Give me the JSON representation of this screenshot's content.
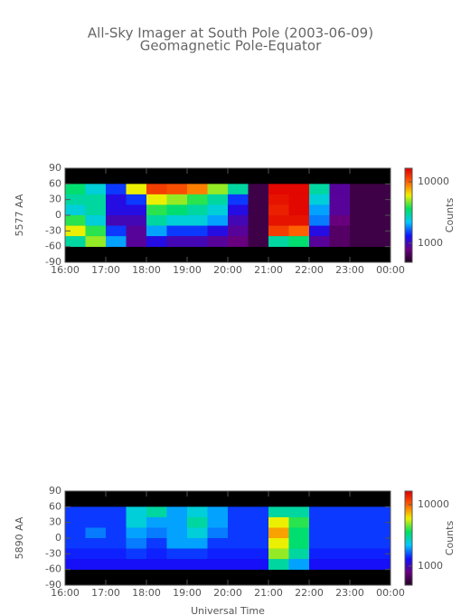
{
  "chart_data": [
    {
      "type": "heatmap",
      "title": "All-Sky Imager at South Pole (2003-06-09)",
      "subtitle": "Geomagnetic Pole-Equator",
      "ylabel": "5577 AA",
      "colorbar_label": "Counts",
      "xlim": [
        16,
        24
      ],
      "xticks": [
        {
          "value": 16,
          "label": "16:00"
        },
        {
          "value": 17,
          "label": "17:00"
        },
        {
          "value": 18,
          "label": "18:00"
        },
        {
          "value": 19,
          "label": "19:00"
        },
        {
          "value": 20,
          "label": "20:00"
        },
        {
          "value": 21,
          "label": "21:00"
        },
        {
          "value": 22,
          "label": "22:00"
        },
        {
          "value": 23,
          "label": "23:00"
        },
        {
          "value": 24,
          "label": "00:00"
        }
      ],
      "ylim": [
        -90,
        90
      ],
      "yticks": [
        -90,
        -60,
        -30,
        0,
        30,
        60,
        90
      ],
      "clim": [
        490,
        16600
      ],
      "cticks": [
        1000,
        10000
      ],
      "log_color": true,
      "colors": [
        "#200020",
        "#6a0080",
        "#1010ff",
        "#00c8ff",
        "#00e060",
        "#f0f000",
        "#ff6000",
        "#e00000"
      ],
      "x": [
        16.25,
        16.75,
        17.25,
        17.75,
        18.25,
        18.75,
        19.25,
        19.75,
        20.25,
        20.75,
        21.25,
        21.75,
        22.25,
        22.75,
        23.25,
        23.75
      ],
      "y": [
        50,
        30,
        10,
        -10,
        -30,
        -50
      ],
      "values": [
        [
          3500,
          2500,
          1500,
          6000,
          12000,
          11000,
          9000,
          5000,
          3000,
          600,
          16000,
          16000,
          3000,
          900,
          600,
          600
        ],
        [
          3000,
          3000,
          1200,
          1500,
          6000,
          5000,
          4000,
          3000,
          1500,
          600,
          15000,
          16000,
          2500,
          900,
          600,
          600
        ],
        [
          2500,
          3000,
          1200,
          1200,
          4000,
          3500,
          3000,
          2500,
          1200,
          600,
          14000,
          16000,
          2000,
          900,
          600,
          600
        ],
        [
          4000,
          2500,
          1000,
          1000,
          3000,
          2500,
          2500,
          2000,
          1000,
          600,
          15000,
          15000,
          1800,
          800,
          600,
          600
        ],
        [
          6000,
          4000,
          1500,
          900,
          2000,
          1500,
          1500,
          1200,
          900,
          600,
          12000,
          10000,
          1200,
          700,
          600,
          600
        ],
        [
          3000,
          5000,
          2000,
          900,
          1200,
          1000,
          1000,
          900,
          800,
          600,
          3000,
          3500,
          900,
          700,
          600,
          600
        ]
      ]
    },
    {
      "type": "heatmap",
      "xlabel": "Universal Time",
      "ylabel": "5890 AA",
      "colorbar_label": "Counts",
      "xlim": [
        16,
        24
      ],
      "xticks": [
        {
          "value": 16,
          "label": "16:00"
        },
        {
          "value": 17,
          "label": "17:00"
        },
        {
          "value": 18,
          "label": "18:00"
        },
        {
          "value": 19,
          "label": "19:00"
        },
        {
          "value": 20,
          "label": "20:00"
        },
        {
          "value": 21,
          "label": "21:00"
        },
        {
          "value": 22,
          "label": "22:00"
        },
        {
          "value": 23,
          "label": "23:00"
        },
        {
          "value": 24,
          "label": "00:00"
        }
      ],
      "ylim": [
        -90,
        90
      ],
      "yticks": [
        -90,
        -60,
        -30,
        0,
        30,
        60,
        90
      ],
      "clim": [
        490,
        16600
      ],
      "cticks": [
        1000,
        10000
      ],
      "log_color": true,
      "colors": [
        "#200020",
        "#6a0080",
        "#1010ff",
        "#00c8ff",
        "#00e060",
        "#f0f000",
        "#ff6000",
        "#e00000"
      ],
      "x": [
        16.25,
        16.75,
        17.25,
        17.75,
        18.25,
        18.75,
        19.25,
        19.75,
        20.25,
        20.75,
        21.25,
        21.75,
        22.25,
        22.75,
        23.25,
        23.75
      ],
      "y": [
        50,
        30,
        10,
        -10,
        -30,
        -50
      ],
      "values": [
        [
          1500,
          1500,
          1500,
          2500,
          3000,
          2000,
          2500,
          2000,
          1500,
          1500,
          3000,
          3000,
          1500,
          1500,
          1500,
          1500
        ],
        [
          1500,
          1500,
          1500,
          2500,
          2000,
          2000,
          3000,
          2000,
          1500,
          1500,
          6000,
          4000,
          1500,
          1500,
          1500,
          1500
        ],
        [
          1500,
          1800,
          1500,
          2000,
          1800,
          2000,
          2500,
          1800,
          1500,
          1500,
          8000,
          3500,
          1500,
          1500,
          1500,
          1500
        ],
        [
          1500,
          1500,
          1500,
          1800,
          1500,
          2000,
          2000,
          1500,
          1500,
          1500,
          6000,
          3500,
          1500,
          1500,
          1500,
          1500
        ],
        [
          1400,
          1400,
          1400,
          1500,
          1400,
          1500,
          1500,
          1400,
          1400,
          1400,
          5000,
          3000,
          1400,
          1400,
          1400,
          1400
        ],
        [
          1300,
          1300,
          1300,
          1300,
          1300,
          1300,
          1300,
          1300,
          1300,
          1300,
          3000,
          2000,
          1300,
          1300,
          1300,
          1300
        ]
      ]
    }
  ]
}
